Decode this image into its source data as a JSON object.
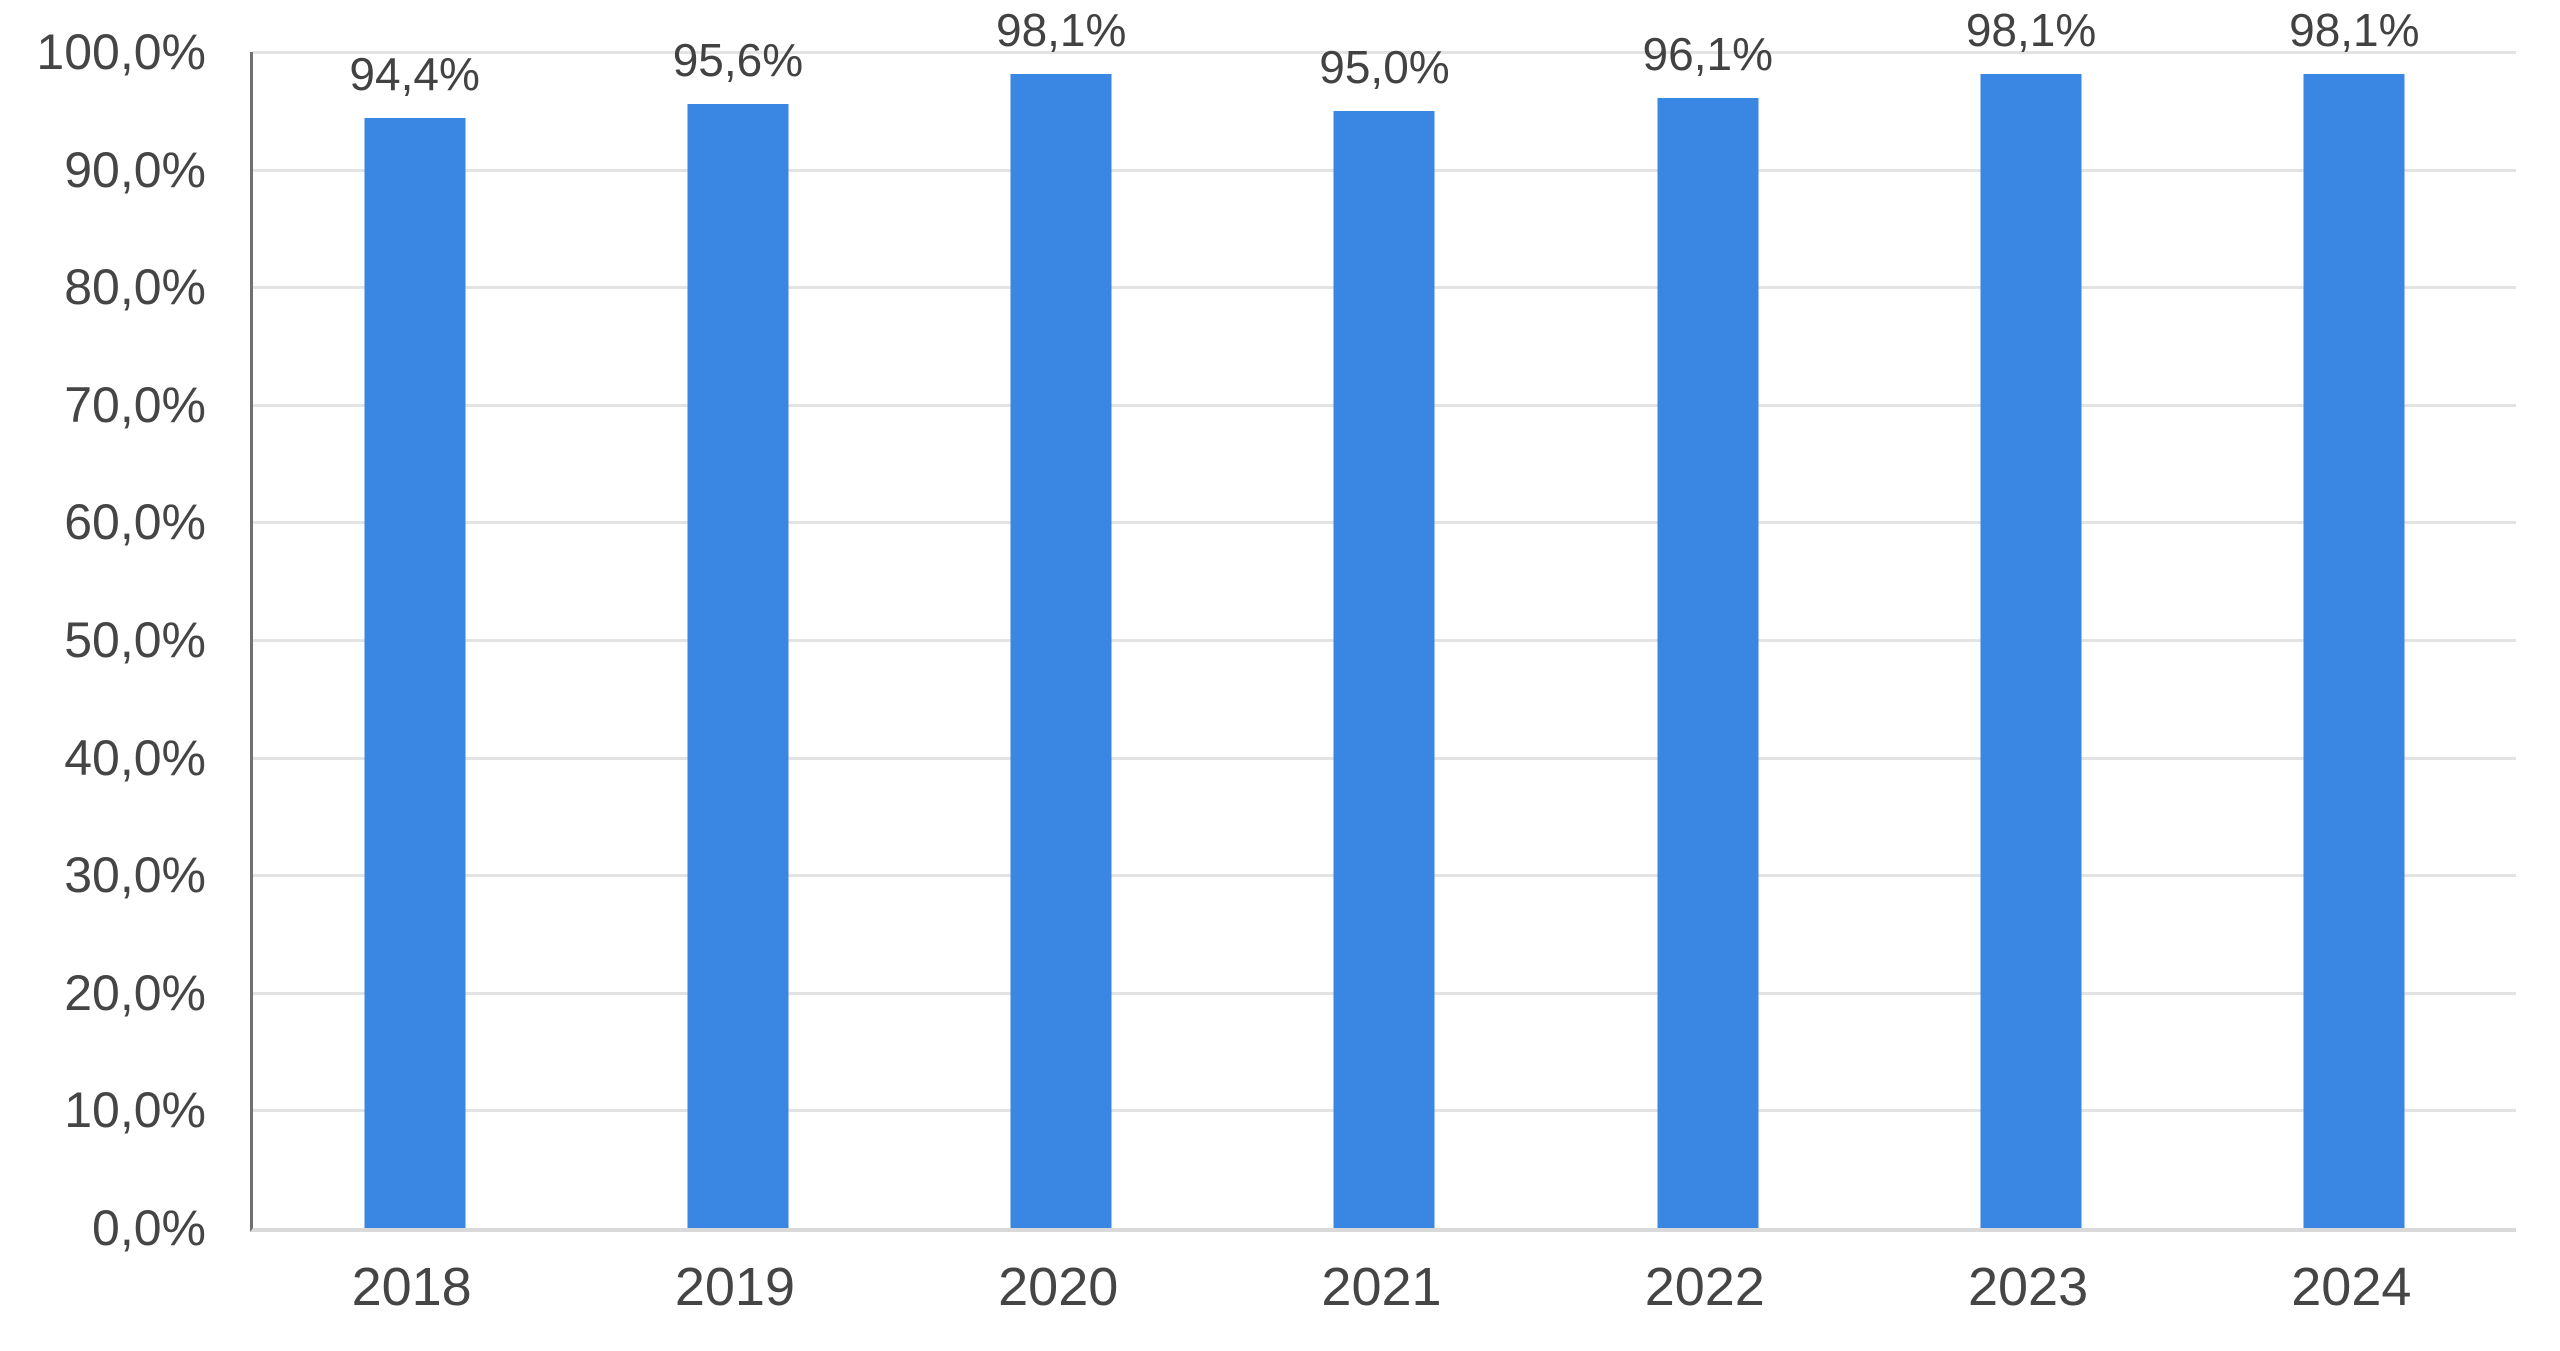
{
  "chart_data": {
    "type": "bar",
    "title": "",
    "categories": [
      "2018",
      "2019",
      "2020",
      "2021",
      "2022",
      "2023",
      "2024"
    ],
    "values": [
      94.4,
      95.6,
      98.1,
      95.0,
      96.1,
      98.1,
      98.1
    ],
    "value_labels": [
      "94,4%",
      "95,6%",
      "98,1%",
      "95,0%",
      "96,1%",
      "98,1%",
      "98,1%"
    ],
    "series_count": 1,
    "xlabel": "",
    "ylabel": "",
    "ylim": [
      0,
      100
    ],
    "y_ticks": [
      {
        "value": 0,
        "label": "0,0%"
      },
      {
        "value": 10,
        "label": "10,0%"
      },
      {
        "value": 20,
        "label": "20,0%"
      },
      {
        "value": 30,
        "label": "30,0%"
      },
      {
        "value": 40,
        "label": "40,0%"
      },
      {
        "value": 50,
        "label": "50,0%"
      },
      {
        "value": 60,
        "label": "60,0%"
      },
      {
        "value": 70,
        "label": "70,0%"
      },
      {
        "value": 80,
        "label": "80,0%"
      },
      {
        "value": 90,
        "label": "90,0%"
      },
      {
        "value": 100,
        "label": "100,0%"
      }
    ],
    "grid": "horizontal",
    "legend": "none",
    "colors": {
      "bar": "#3A86E3",
      "gridline": "#E3E3E3",
      "baseline": "#D9D9D9",
      "axis_line": "#707070",
      "text": "#424242"
    }
  }
}
